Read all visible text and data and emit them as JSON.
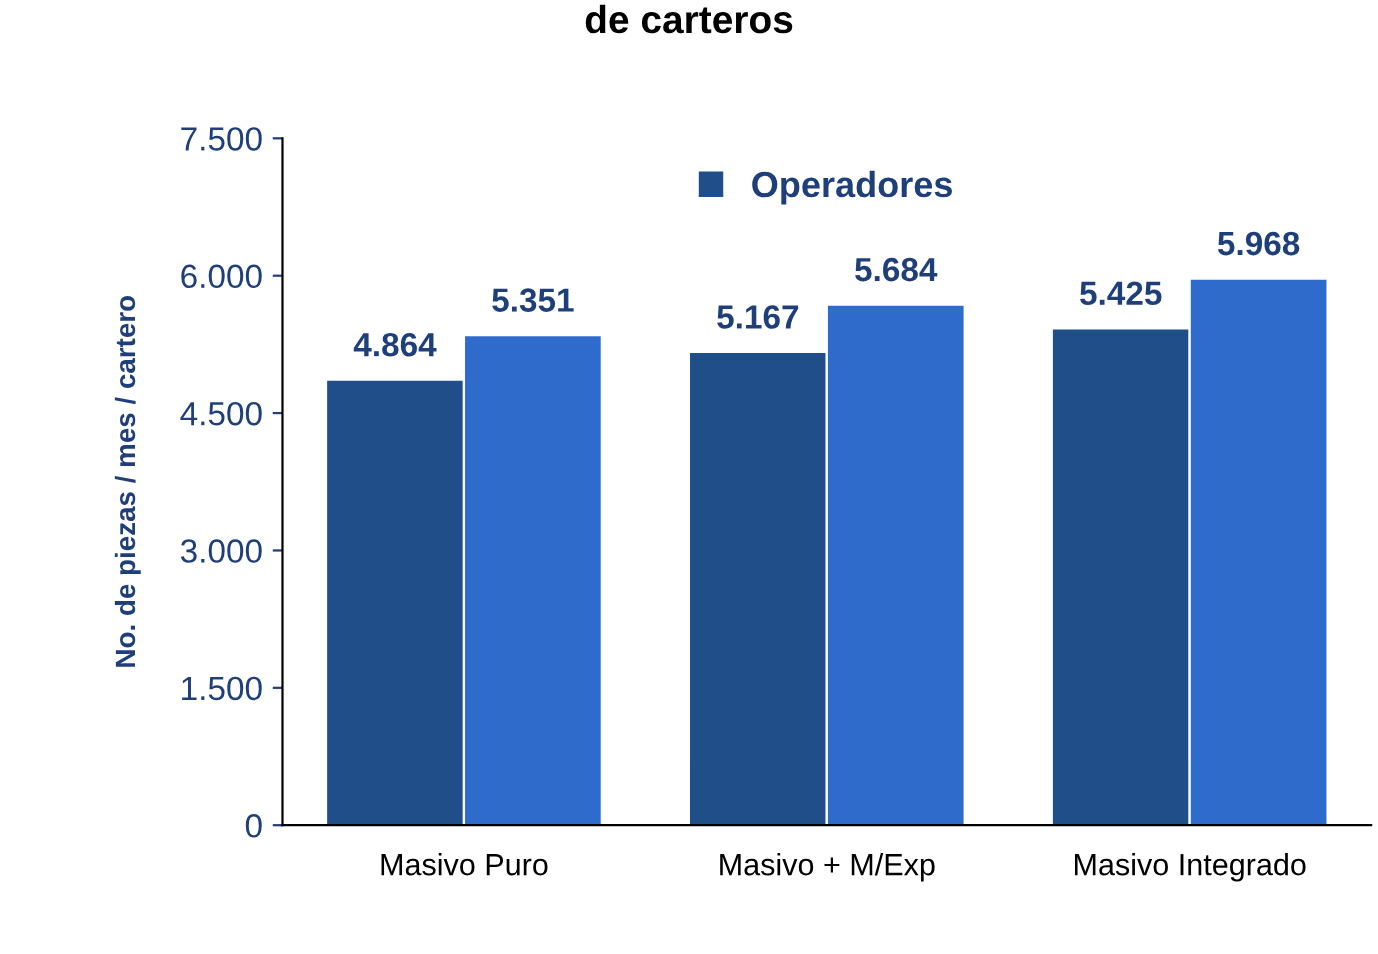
{
  "chart_data": {
    "type": "bar",
    "title": "de carteros",
    "ylabel": "No. de piezas / mes / cartero",
    "categories": [
      "Masivo Puro",
      "Masivo + M/Exp",
      "Masivo Integrado"
    ],
    "series": [
      {
        "name": "Operadores",
        "color": "#1f4e89",
        "values": [
          4864,
          5167,
          5425
        ],
        "value_labels": [
          "4.864",
          "5.167",
          "5.425"
        ]
      },
      {
        "color": "#2f6bcb",
        "values": [
          5351,
          5684,
          5968
        ],
        "value_labels": [
          "5.351",
          "5.684",
          "5.968"
        ]
      }
    ],
    "ylim": [
      0,
      7500
    ],
    "yticks": [
      {
        "value": 0,
        "label": "0"
      },
      {
        "value": 1500,
        "label": "1.500"
      },
      {
        "value": 3000,
        "label": "3.000"
      },
      {
        "value": 4500,
        "label": "4.500"
      },
      {
        "value": 6000,
        "label": "6.000"
      },
      {
        "value": 7500,
        "label": "7.500"
      }
    ],
    "legend": "top"
  }
}
